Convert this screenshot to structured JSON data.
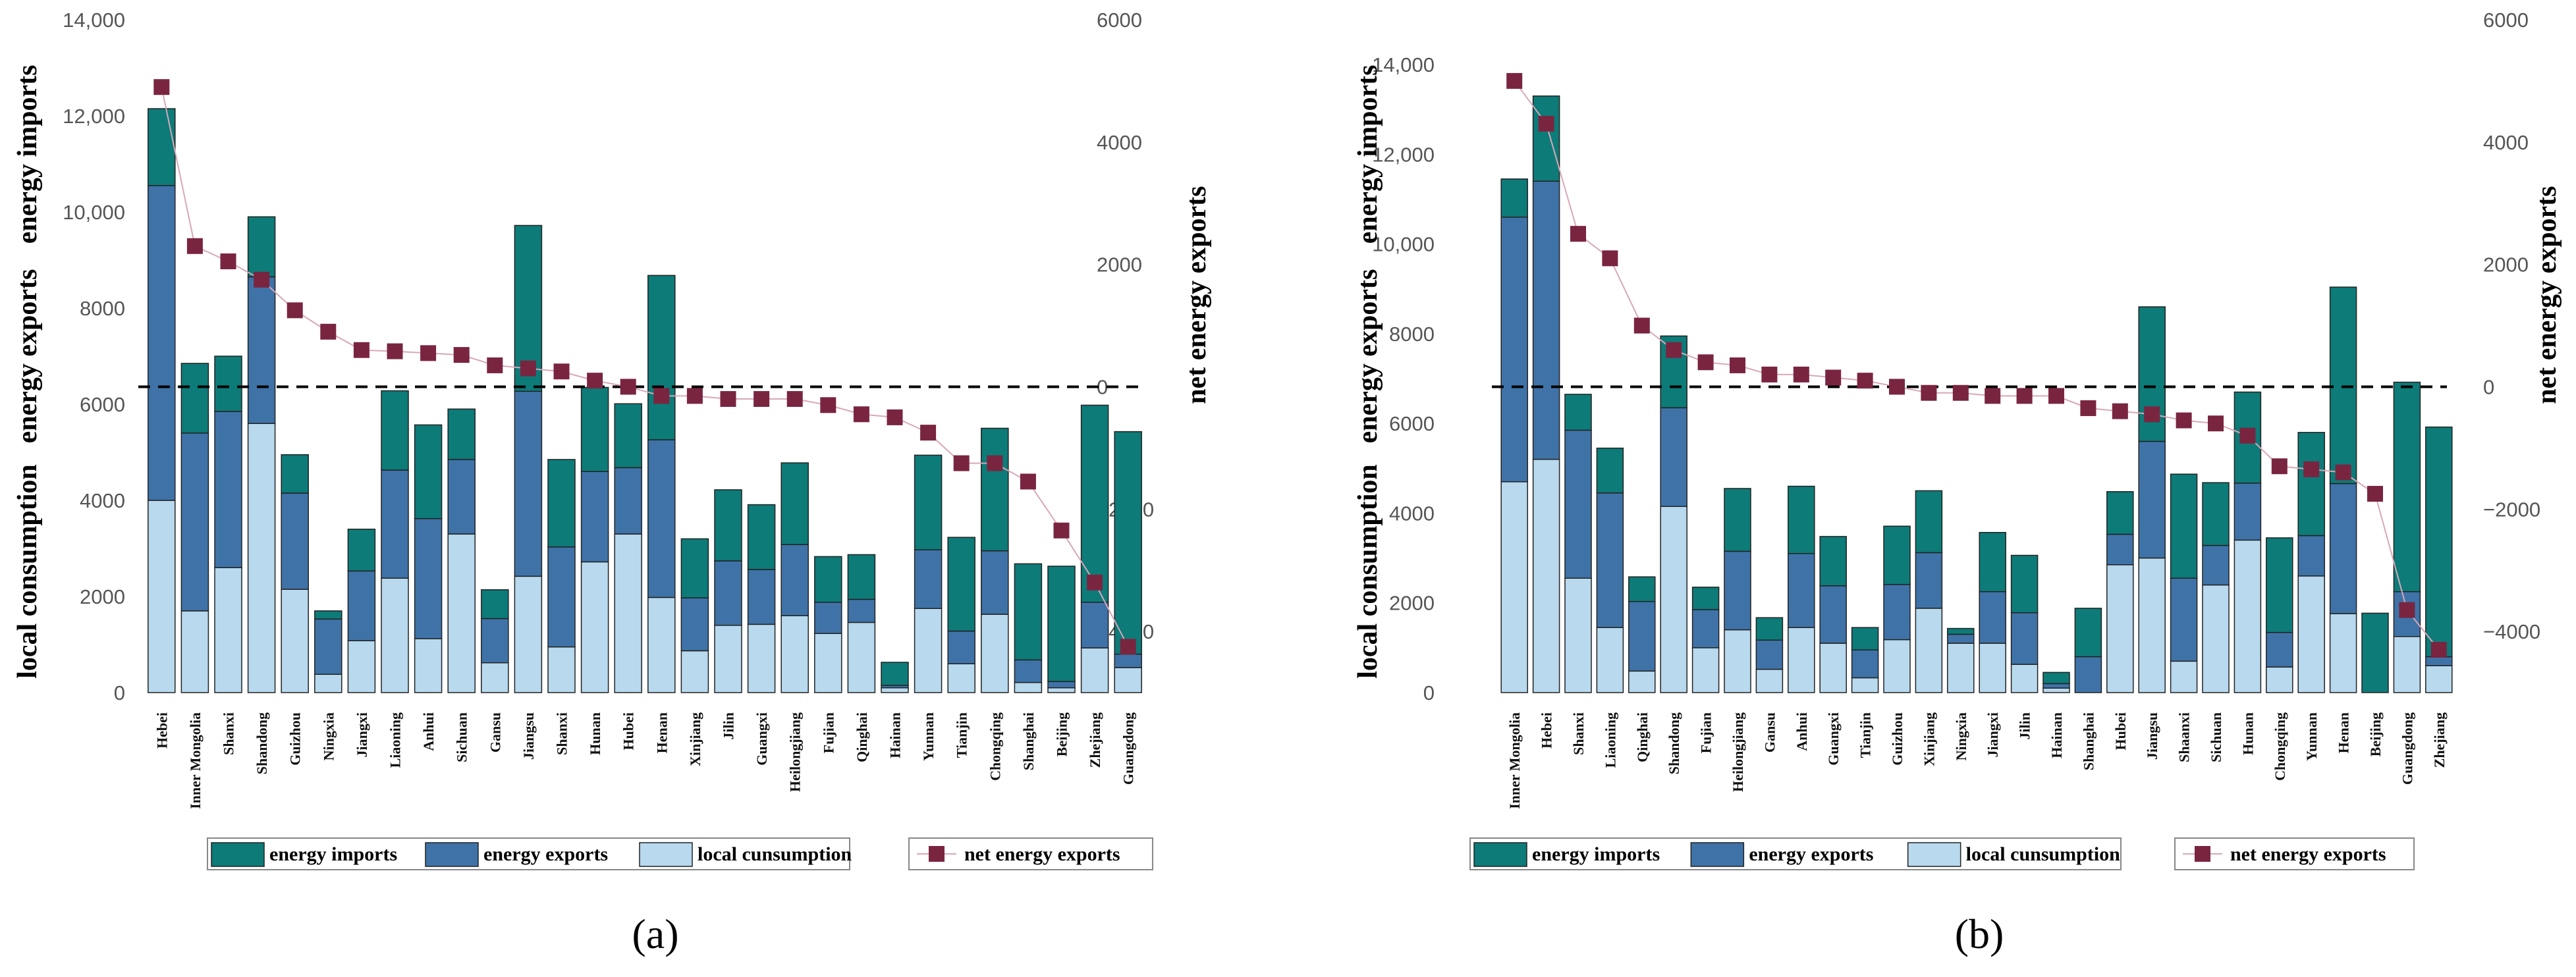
{
  "colors": {
    "imports": "#0d7b78",
    "exports": "#3f73a8",
    "local": "#b8d9ee",
    "net": "#7a2540",
    "net_line": "#d8a8b8"
  },
  "legend": {
    "imports": "energy imports",
    "exports": "energy exports",
    "local": "local cunsumption",
    "net": "net energy exports"
  },
  "axis_labels": {
    "left": [
      "local consumption",
      "energy exports",
      "energy imports"
    ],
    "right": "net energy exports"
  },
  "chart_data": [
    {
      "type": "bar",
      "panel_label": "(a)",
      "left_ticks": [
        "0",
        "2000",
        "4000",
        "6000",
        "8000",
        "10,000",
        "12,000",
        "14,000"
      ],
      "right_ticks": [
        "−4000",
        "−2000",
        "0",
        "2000",
        "4000",
        "6000"
      ],
      "ylim": [
        0,
        14000
      ],
      "y2lim": [
        -5000,
        6000
      ],
      "categories": [
        "Hebei",
        "Inner Mongolia",
        "Shanxi",
        "Shandong",
        "Guizhou",
        "Ningxia",
        "Jiangxi",
        "Liaoning",
        "Anhui",
        "Sichuan",
        "Gansu",
        "Jiangsu",
        "Shanxi",
        "Hunan",
        "Hubei",
        "Henan",
        "Xinjiang",
        "Jilin",
        "Guangxi",
        "Heilongjiang",
        "Fujian",
        "Qinghai",
        "Hainan",
        "Yunnan",
        "Tianjin",
        "Chongqing",
        "Shanghai",
        "Beijing",
        "Zhejiang",
        "Guangdong"
      ],
      "series": [
        {
          "name": "local consumption",
          "values": [
            4000,
            1700,
            2600,
            5600,
            2150,
            380,
            1080,
            2380,
            1120,
            3300,
            620,
            2420,
            950,
            2720,
            3300,
            1980,
            870,
            1400,
            1420,
            1600,
            1230,
            1460,
            100,
            1750,
            600,
            1630,
            210,
            100,
            930,
            520
          ]
        },
        {
          "name": "energy exports",
          "values": [
            6550,
            3700,
            3250,
            3050,
            2000,
            1150,
            1450,
            2250,
            2500,
            1550,
            920,
            3850,
            2080,
            1880,
            1380,
            3280,
            1100,
            1340,
            1140,
            1480,
            650,
            480,
            50,
            1220,
            680,
            1320,
            470,
            130,
            950,
            280
          ]
        },
        {
          "name": "energy imports",
          "values": [
            1600,
            1450,
            1150,
            1250,
            800,
            170,
            870,
            1650,
            1950,
            1050,
            600,
            3450,
            1820,
            1750,
            1330,
            3420,
            1230,
            1480,
            1350,
            1700,
            950,
            930,
            480,
            1970,
            1950,
            2550,
            2000,
            2400,
            4100,
            4630
          ]
        },
        {
          "name": "net energy exports",
          "values": [
            4900,
            2300,
            2050,
            1750,
            1250,
            900,
            600,
            580,
            550,
            520,
            350,
            300,
            250,
            100,
            0,
            -150,
            -150,
            -200,
            -200,
            -200,
            -300,
            -450,
            -500,
            -750,
            -1250,
            -1250,
            -1550,
            -2350,
            -3200,
            -4250
          ]
        }
      ]
    },
    {
      "type": "bar",
      "panel_label": "(b)",
      "left_ticks": [
        "0",
        "2000",
        "4000",
        "6000",
        "8000",
        "10,000",
        "12,000",
        "14,000"
      ],
      "right_ticks": [
        "−4000",
        "−2000",
        "0",
        "2000",
        "4000",
        "6000"
      ],
      "ylim": [
        0,
        15000
      ],
      "y2lim": [
        -5000,
        6000
      ],
      "categories": [
        "Inner Mongolia",
        "Hebei",
        "Shanxi",
        "Liaoning",
        "Qinghai",
        "Shandong",
        "Fujian",
        "Heilongjiang",
        "Gansu",
        "Anhui",
        "Guangxi",
        "Tianjin",
        "Guizhou",
        "Xinjiang",
        "Ningxia",
        "Jiangxi",
        "Jilin",
        "Hainan",
        "Shanghai",
        "Hubei",
        "Jiangsu",
        "Shaanxi",
        "Sichuan",
        "Hunan",
        "Chongqing",
        "Yunnan",
        "Henan",
        "Beijing",
        "Guangdong",
        "Zhejiang"
      ],
      "series": [
        {
          "name": "local consumption",
          "values": [
            4700,
            5200,
            2550,
            1450,
            480,
            4150,
            1000,
            1400,
            520,
            1450,
            1100,
            330,
            1180,
            1880,
            1100,
            1100,
            630,
            100,
            0,
            2850,
            3000,
            700,
            2400,
            3400,
            570,
            2600,
            1760,
            0,
            1250,
            600
          ]
        },
        {
          "name": "energy exports",
          "values": [
            5900,
            6200,
            3300,
            3000,
            1550,
            2200,
            850,
            1750,
            650,
            1650,
            1280,
            620,
            1230,
            1240,
            200,
            1150,
            1150,
            100,
            800,
            680,
            2600,
            1850,
            880,
            1270,
            770,
            900,
            2900,
            0,
            1000,
            200
          ]
        },
        {
          "name": "energy imports",
          "values": [
            850,
            1900,
            800,
            1000,
            550,
            1600,
            500,
            1400,
            500,
            1500,
            1100,
            500,
            1300,
            1380,
            130,
            1320,
            1280,
            250,
            1080,
            950,
            3000,
            2320,
            1400,
            2030,
            2110,
            2300,
            4380,
            1770,
            4670,
            5120
          ]
        },
        {
          "name": "net energy exports",
          "values": [
            5000,
            4300,
            2500,
            2100,
            1000,
            600,
            400,
            350,
            200,
            200,
            150,
            100,
            0,
            -100,
            -100,
            -150,
            -150,
            -150,
            -350,
            -400,
            -450,
            -550,
            -600,
            -800,
            -1300,
            -1350,
            -1400,
            -1750,
            -3650,
            -4300
          ]
        }
      ]
    }
  ]
}
